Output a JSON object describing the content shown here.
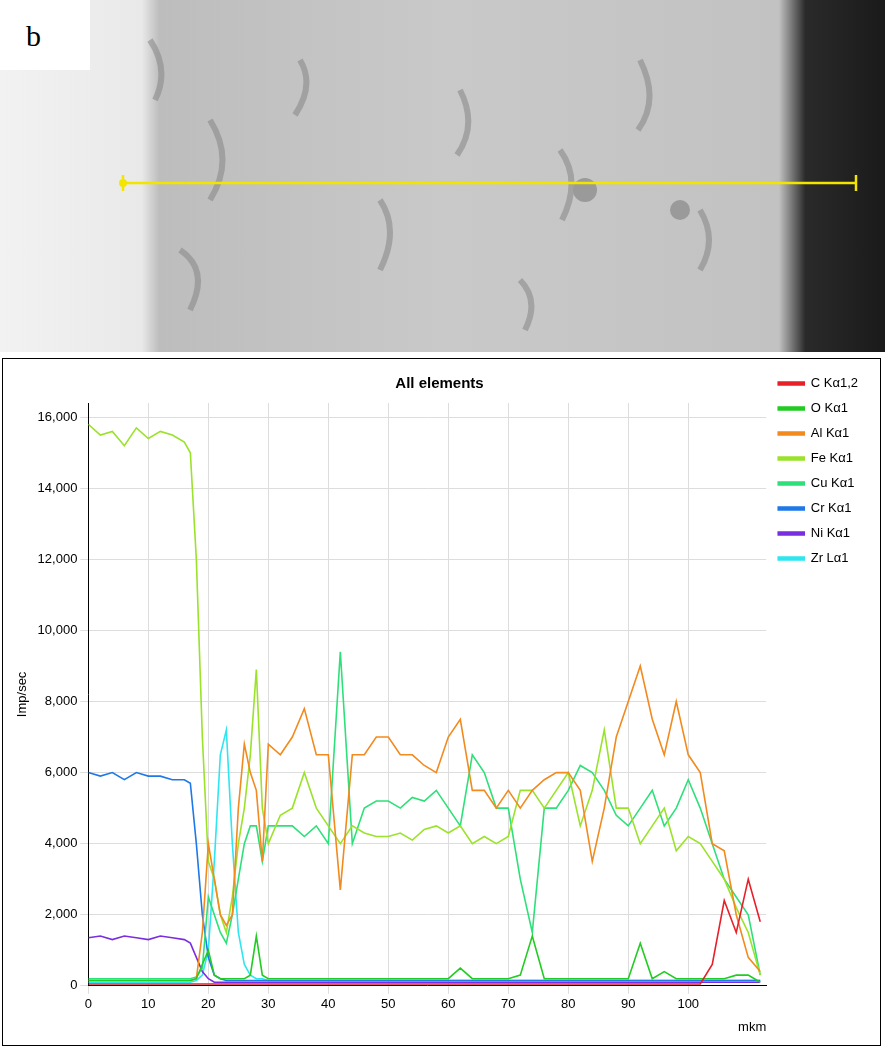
{
  "panel_label": "b",
  "chart_data": {
    "type": "line",
    "title": "All elements",
    "x_label": "mkm",
    "y_label": "Imp/sec",
    "xlim": [
      0,
      113
    ],
    "ylim": [
      0,
      16400
    ],
    "xticks": [
      0,
      10,
      20,
      30,
      40,
      50,
      60,
      70,
      80,
      90,
      100
    ],
    "yticks": [
      0,
      2000,
      4000,
      6000,
      8000,
      10000,
      12000,
      14000,
      16000
    ],
    "grid": true,
    "legend": "right",
    "x": [
      0,
      2,
      4,
      6,
      8,
      10,
      12,
      14,
      16,
      17,
      18,
      19,
      20,
      21,
      22,
      23,
      24,
      25,
      26,
      27,
      28,
      29,
      30,
      32,
      34,
      36,
      38,
      40,
      42,
      44,
      46,
      48,
      50,
      52,
      54,
      56,
      58,
      60,
      62,
      64,
      66,
      68,
      70,
      72,
      74,
      76,
      78,
      80,
      82,
      84,
      86,
      88,
      90,
      92,
      94,
      96,
      98,
      100,
      102,
      104,
      106,
      108,
      110,
      112
    ],
    "series": [
      {
        "name": "C Kα1,2",
        "color": "#e8202a",
        "values": [
          50,
          50,
          50,
          50,
          50,
          50,
          50,
          50,
          50,
          50,
          50,
          50,
          50,
          50,
          50,
          50,
          50,
          50,
          50,
          50,
          50,
          50,
          50,
          50,
          50,
          50,
          50,
          50,
          50,
          50,
          50,
          50,
          50,
          50,
          50,
          50,
          50,
          50,
          50,
          50,
          50,
          50,
          50,
          50,
          50,
          50,
          50,
          50,
          50,
          50,
          50,
          50,
          50,
          50,
          50,
          50,
          50,
          50,
          50,
          600,
          2400,
          1500,
          3000,
          1800
        ]
      },
      {
        "name": "O Kα1",
        "color": "#22cc22",
        "values": [
          150,
          150,
          150,
          150,
          150,
          150,
          150,
          150,
          150,
          150,
          200,
          600,
          1000,
          300,
          200,
          200,
          200,
          200,
          200,
          300,
          1400,
          300,
          200,
          200,
          200,
          200,
          200,
          200,
          200,
          200,
          200,
          200,
          200,
          200,
          200,
          200,
          200,
          200,
          500,
          200,
          200,
          200,
          200,
          300,
          1400,
          200,
          200,
          200,
          200,
          200,
          200,
          200,
          200,
          1200,
          200,
          400,
          200,
          200,
          200,
          200,
          200,
          300,
          300,
          100
        ]
      },
      {
        "name": "Al Kα1",
        "color": "#f28a1e",
        "values": [
          150,
          150,
          150,
          150,
          150,
          150,
          150,
          150,
          150,
          150,
          200,
          1500,
          4000,
          3000,
          2000,
          1700,
          2000,
          5000,
          6800,
          6000,
          5500,
          3500,
          6800,
          6500,
          7000,
          7800,
          6500,
          6500,
          2700,
          6500,
          6500,
          7000,
          7000,
          6500,
          6500,
          6200,
          6000,
          7000,
          7500,
          5500,
          5500,
          5000,
          5500,
          5000,
          5500,
          5800,
          6000,
          6000,
          5500,
          3500,
          5000,
          7000,
          8000,
          9000,
          7500,
          6500,
          8000,
          6500,
          6000,
          4000,
          3800,
          2000,
          800,
          400
        ]
      },
      {
        "name": "Fe Kα1",
        "color": "#9be22a",
        "values": [
          15800,
          15500,
          15600,
          15200,
          15700,
          15400,
          15600,
          15500,
          15300,
          15000,
          12000,
          7000,
          3500,
          3000,
          2000,
          1500,
          2500,
          4000,
          5000,
          6500,
          8900,
          5000,
          4000,
          4800,
          5000,
          6000,
          5000,
          4500,
          4000,
          4500,
          4300,
          4200,
          4200,
          4300,
          4100,
          4400,
          4500,
          4300,
          4500,
          4000,
          4200,
          4000,
          4200,
          5500,
          5500,
          5000,
          5500,
          6000,
          4500,
          5500,
          7200,
          5000,
          5000,
          4000,
          4500,
          5000,
          3800,
          4200,
          4000,
          3500,
          3000,
          2200,
          1500,
          300
        ]
      },
      {
        "name": "Cu Kα1",
        "color": "#2ee07a",
        "values": [
          200,
          200,
          200,
          200,
          200,
          200,
          200,
          200,
          200,
          200,
          250,
          500,
          2500,
          2000,
          1500,
          1200,
          2000,
          3000,
          4000,
          4500,
          4500,
          3500,
          4500,
          4500,
          4500,
          4200,
          4500,
          4000,
          9400,
          4000,
          5000,
          5200,
          5200,
          5000,
          5300,
          5200,
          5500,
          5000,
          4500,
          6500,
          6000,
          5000,
          5000,
          3000,
          1500,
          5000,
          5000,
          5500,
          6200,
          6000,
          5500,
          4800,
          4500,
          5000,
          5500,
          4500,
          5000,
          5800,
          5000,
          4000,
          3000,
          2500,
          2000,
          300
        ]
      },
      {
        "name": "Cr Kα1",
        "color": "#1e78e8",
        "values": [
          6000,
          5900,
          6000,
          5800,
          6000,
          5900,
          5900,
          5800,
          5800,
          5700,
          4000,
          2000,
          800,
          300,
          200,
          150,
          150,
          150,
          150,
          150,
          150,
          150,
          150,
          150,
          150,
          150,
          150,
          150,
          150,
          150,
          150,
          150,
          150,
          150,
          150,
          150,
          150,
          150,
          150,
          150,
          150,
          150,
          150,
          150,
          150,
          150,
          150,
          150,
          150,
          150,
          150,
          150,
          150,
          150,
          150,
          150,
          150,
          150,
          150,
          150,
          150,
          150,
          150,
          150
        ]
      },
      {
        "name": "Ni Kα1",
        "color": "#7a2ee0",
        "values": [
          1350,
          1400,
          1300,
          1400,
          1350,
          1300,
          1400,
          1350,
          1300,
          1200,
          800,
          400,
          200,
          100,
          100,
          100,
          100,
          100,
          100,
          100,
          100,
          100,
          100,
          100,
          100,
          100,
          100,
          100,
          100,
          100,
          100,
          100,
          100,
          100,
          100,
          100,
          100,
          100,
          100,
          100,
          100,
          100,
          100,
          100,
          100,
          100,
          100,
          100,
          100,
          100,
          100,
          100,
          100,
          100,
          100,
          100,
          100,
          100,
          100,
          100,
          100,
          100,
          100,
          100
        ]
      },
      {
        "name": "Zr Lα1",
        "color": "#2ee6f0",
        "values": [
          100,
          100,
          100,
          100,
          100,
          100,
          100,
          100,
          100,
          100,
          150,
          300,
          1000,
          3500,
          6500,
          7200,
          4000,
          1500,
          600,
          300,
          200,
          200,
          150,
          150,
          150,
          150,
          150,
          150,
          150,
          150,
          150,
          150,
          150,
          150,
          150,
          150,
          150,
          150,
          150,
          150,
          150,
          150,
          150,
          150,
          150,
          150,
          150,
          150,
          150,
          150,
          150,
          150,
          150,
          150,
          150,
          150,
          150,
          150,
          150,
          150,
          150,
          150,
          150,
          150
        ]
      }
    ]
  }
}
